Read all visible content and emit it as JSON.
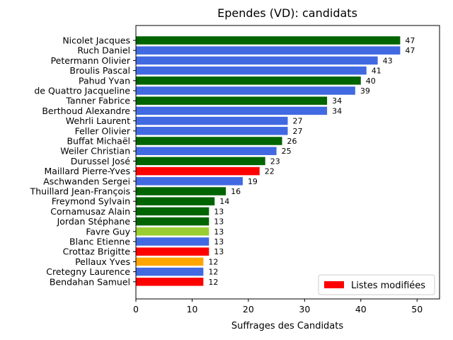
{
  "chart_data": {
    "type": "bar",
    "orientation": "horizontal",
    "title": "Ependes (VD): candidats",
    "xlabel": "Suffrages des Candidats",
    "ylabel": "",
    "xlim": [
      0,
      54
    ],
    "xticks": [
      0,
      10,
      20,
      30,
      40,
      50
    ],
    "grid": false,
    "legend": {
      "label": "Listes modifiées",
      "color": "#ff0000",
      "placement": "lower-right"
    },
    "colors": {
      "darkgreen": "#006400",
      "royalblue": "#4169e1",
      "red": "#ff0000",
      "yellowgreen": "#9acd32",
      "orange": "#ffa500"
    },
    "categories": [
      "Nicolet Jacques",
      "Ruch Daniel",
      "Petermann Olivier",
      "Broulis Pascal",
      "Pahud Yvan",
      "de Quattro Jacqueline",
      "Tanner Fabrice",
      "Berthoud Alexandre",
      "Wehrli Laurent",
      "Feller Olivier",
      "Buffat Michaël",
      "Weiler Christian",
      "Durussel José",
      "Maillard Pierre-Yves",
      "Aschwanden Sergei",
      "Thuillard Jean-François",
      "Freymond Sylvain",
      "Cornamusaz Alain",
      "Jordan Stéphane",
      "Favre Guy",
      "Blanc Etienne",
      "Crottaz Brigitte",
      "Pellaux Yves",
      "Cretegny Laurence",
      "Bendahan Samuel"
    ],
    "values": [
      47,
      47,
      43,
      41,
      40,
      39,
      34,
      34,
      27,
      27,
      26,
      25,
      23,
      22,
      19,
      16,
      14,
      13,
      13,
      13,
      13,
      13,
      12,
      12,
      12
    ],
    "bar_colors": [
      "darkgreen",
      "royalblue",
      "royalblue",
      "royalblue",
      "darkgreen",
      "royalblue",
      "darkgreen",
      "royalblue",
      "royalblue",
      "royalblue",
      "darkgreen",
      "royalblue",
      "darkgreen",
      "red",
      "royalblue",
      "darkgreen",
      "darkgreen",
      "darkgreen",
      "darkgreen",
      "yellowgreen",
      "royalblue",
      "red",
      "orange",
      "royalblue",
      "red"
    ]
  }
}
